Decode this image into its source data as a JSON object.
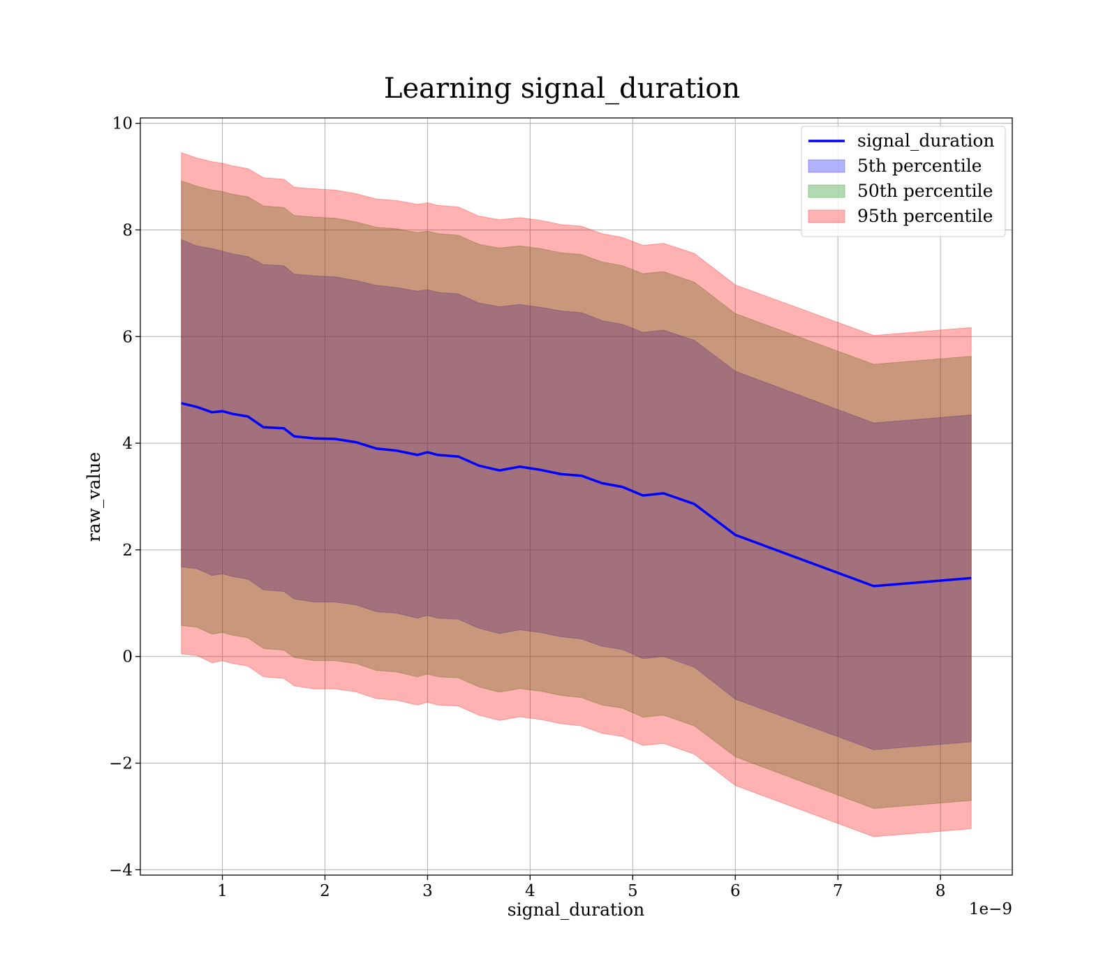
{
  "chart_data": {
    "type": "area",
    "title": "Learning signal_duration",
    "xlabel": "signal_duration",
    "ylabel": "raw_value",
    "x_offset_label": "1e−9",
    "xlim": [
      0.2,
      8.7
    ],
    "ylim": [
      -4.1,
      10.1
    ],
    "x_ticks": [
      1,
      2,
      3,
      4,
      5,
      6,
      7,
      8
    ],
    "x_tick_labels": [
      "1",
      "2",
      "3",
      "4",
      "5",
      "6",
      "7",
      "8"
    ],
    "y_ticks": [
      -4,
      -2,
      0,
      2,
      4,
      6,
      8,
      10
    ],
    "y_tick_labels": [
      "−4",
      "−2",
      "0",
      "2",
      "4",
      "6",
      "8",
      "10"
    ],
    "grid": true,
    "legend_position": "top-right",
    "x": [
      0.6,
      0.75,
      0.9,
      1.0,
      1.1,
      1.25,
      1.4,
      1.6,
      1.7,
      1.9,
      2.1,
      2.3,
      2.5,
      2.7,
      2.9,
      3.0,
      3.1,
      3.3,
      3.5,
      3.7,
      3.9,
      4.1,
      4.3,
      4.5,
      4.7,
      4.9,
      5.1,
      5.3,
      5.6,
      6.0,
      7.35,
      8.3
    ],
    "series": [
      {
        "name": "signal_duration",
        "kind": "line",
        "color": "#0000ff",
        "values": [
          4.75,
          4.68,
          4.58,
          4.6,
          4.55,
          4.5,
          4.3,
          4.28,
          4.13,
          4.09,
          4.08,
          4.02,
          3.9,
          3.86,
          3.78,
          3.83,
          3.78,
          3.75,
          3.58,
          3.49,
          3.56,
          3.5,
          3.42,
          3.39,
          3.25,
          3.18,
          3.02,
          3.06,
          2.86,
          2.28,
          1.32,
          1.47
        ]
      },
      {
        "name": "5th percentile",
        "kind": "band",
        "color": "#0000ff",
        "opacity": 0.3,
        "upper": [
          7.82,
          7.7,
          7.65,
          7.6,
          7.55,
          7.5,
          7.35,
          7.33,
          7.17,
          7.14,
          7.12,
          7.05,
          6.96,
          6.92,
          6.85,
          6.88,
          6.83,
          6.8,
          6.63,
          6.56,
          6.6,
          6.55,
          6.48,
          6.45,
          6.3,
          6.23,
          6.08,
          6.12,
          5.93,
          5.35,
          4.38,
          4.53
        ],
        "lower": [
          1.68,
          1.65,
          1.52,
          1.55,
          1.5,
          1.45,
          1.25,
          1.22,
          1.08,
          1.02,
          1.02,
          0.97,
          0.84,
          0.81,
          0.72,
          0.77,
          0.72,
          0.7,
          0.53,
          0.43,
          0.5,
          0.45,
          0.37,
          0.33,
          0.19,
          0.13,
          -0.04,
          0.0,
          -0.2,
          -0.8,
          -1.75,
          -1.6
        ]
      },
      {
        "name": "50th percentile",
        "kind": "band",
        "color": "#008000",
        "opacity": 0.3,
        "upper": [
          8.92,
          8.82,
          8.75,
          8.72,
          8.67,
          8.62,
          8.45,
          8.42,
          8.27,
          8.24,
          8.22,
          8.15,
          8.05,
          8.02,
          7.95,
          7.98,
          7.93,
          7.9,
          7.73,
          7.66,
          7.7,
          7.65,
          7.57,
          7.54,
          7.4,
          7.33,
          7.18,
          7.22,
          7.02,
          6.43,
          5.48,
          5.63
        ],
        "lower": [
          0.58,
          0.55,
          0.42,
          0.45,
          0.4,
          0.35,
          0.15,
          0.12,
          -0.02,
          -0.08,
          -0.08,
          -0.13,
          -0.26,
          -0.29,
          -0.38,
          -0.33,
          -0.38,
          -0.4,
          -0.57,
          -0.67,
          -0.6,
          -0.65,
          -0.73,
          -0.77,
          -0.91,
          -0.97,
          -1.14,
          -1.1,
          -1.3,
          -1.88,
          -2.85,
          -2.7
        ]
      },
      {
        "name": "95th percentile",
        "kind": "band",
        "color": "#ff0000",
        "opacity": 0.3,
        "upper": [
          9.45,
          9.35,
          9.28,
          9.25,
          9.2,
          9.15,
          8.98,
          8.95,
          8.8,
          8.77,
          8.75,
          8.68,
          8.58,
          8.55,
          8.48,
          8.51,
          8.46,
          8.43,
          8.26,
          8.19,
          8.23,
          8.18,
          8.1,
          8.07,
          7.93,
          7.86,
          7.71,
          7.75,
          7.56,
          6.97,
          6.02,
          6.17
        ],
        "lower": [
          0.05,
          0.02,
          -0.12,
          -0.08,
          -0.13,
          -0.18,
          -0.38,
          -0.41,
          -0.55,
          -0.61,
          -0.61,
          -0.66,
          -0.79,
          -0.82,
          -0.91,
          -0.86,
          -0.91,
          -0.93,
          -1.1,
          -1.2,
          -1.13,
          -1.18,
          -1.26,
          -1.3,
          -1.44,
          -1.5,
          -1.67,
          -1.63,
          -1.83,
          -2.42,
          -3.38,
          -3.23
        ]
      }
    ]
  }
}
